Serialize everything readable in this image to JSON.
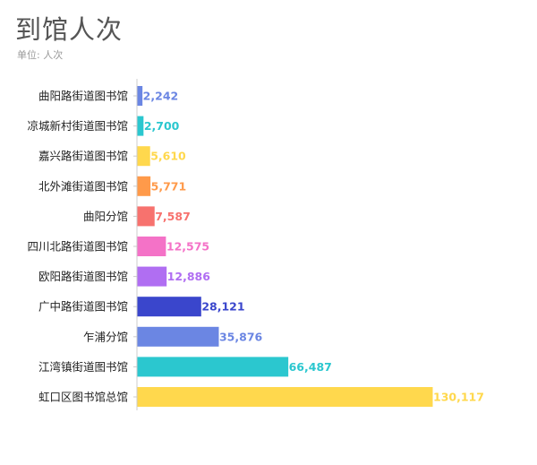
{
  "title": "到馆人次",
  "subtitle": "单位: 人次",
  "chart_data": {
    "type": "bar",
    "orientation": "horizontal",
    "title": "到馆人次",
    "subtitle": "单位: 人次",
    "categories": [
      "曲阳路街道图书馆",
      "凉城新村街道图书馆",
      "嘉兴路街道图书馆",
      "北外滩街道图书馆",
      "曲阳分馆",
      "四川北路街道图书馆",
      "欧阳路街道图书馆",
      "广中路街道图书馆",
      "乍浦分馆",
      "江湾镇街道图书馆",
      "虹口区图书馆总馆"
    ],
    "values": [
      2242,
      2700,
      5610,
      5771,
      7587,
      12575,
      12886,
      28121,
      35876,
      66487,
      130117
    ],
    "value_labels": [
      "2,242",
      "2,700",
      "5,610",
      "5,771",
      "7,587",
      "12,575",
      "12,886",
      "28,121",
      "35,876",
      "66,487",
      "130,117"
    ],
    "colors": [
      "#6b86e3",
      "#2bc7cf",
      "#ffd84d",
      "#ff9a4a",
      "#f7726e",
      "#f472c7",
      "#b06ef2",
      "#3a46cc",
      "#6b86e3",
      "#2bc7cf",
      "#ffd84d"
    ],
    "xlim": [
      0,
      130117
    ],
    "grid": false,
    "legend": "none"
  }
}
